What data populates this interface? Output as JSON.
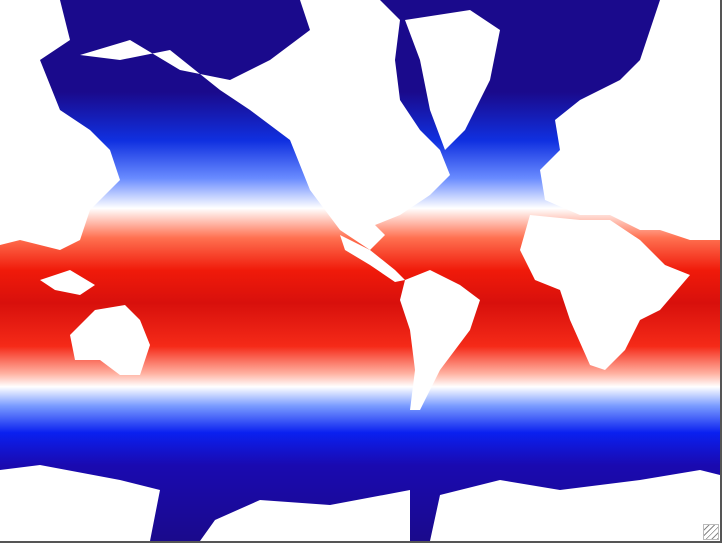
{
  "map": {
    "kind": "sea-surface-temperature",
    "projection": "mercator",
    "colors": {
      "cold": "#1a0a8c",
      "cool": "#0022ff",
      "neutral": "#ffffff",
      "warm": "#ff1a00",
      "hot": "#a00010",
      "land": "#ffffff"
    }
  },
  "window": {
    "resize_grip_icon": "resize-grip-icon"
  }
}
